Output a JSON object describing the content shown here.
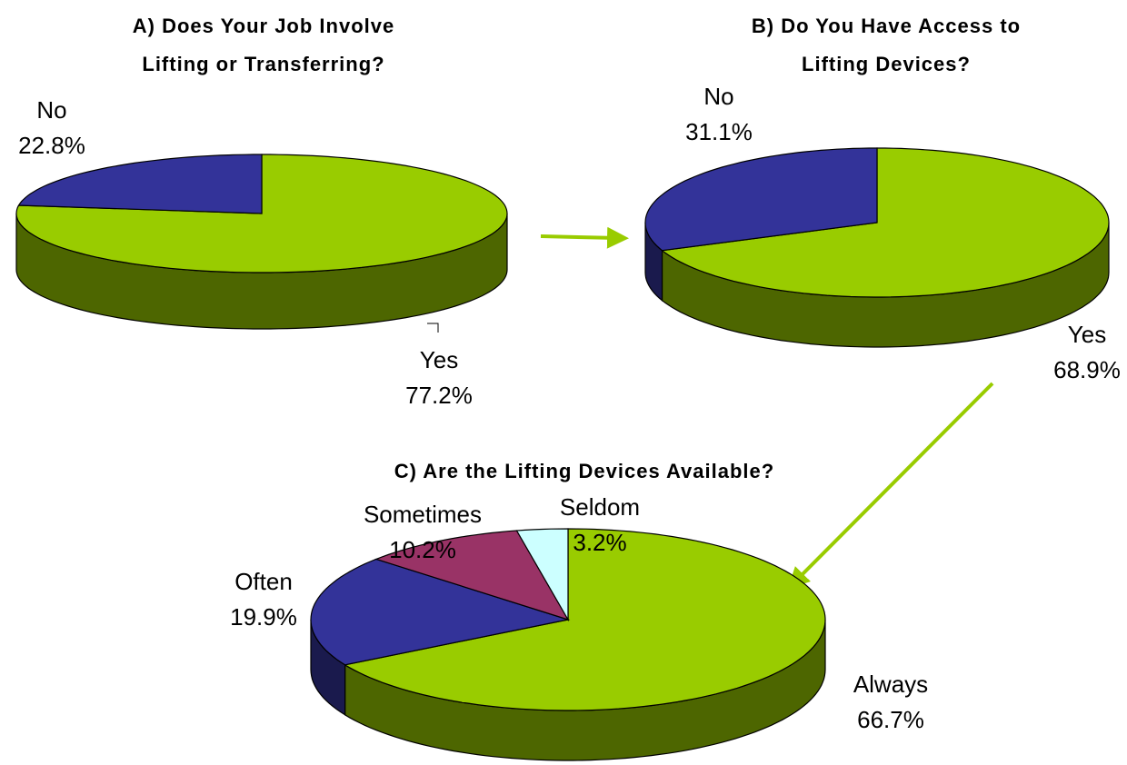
{
  "chart_data": [
    {
      "type": "pie",
      "title": [
        "A) Does Your Job Involve",
        "Lifting or Transferring?"
      ],
      "categories": [
        "Yes",
        "No"
      ],
      "values": [
        77.2,
        22.8
      ],
      "value_labels": [
        "77.2%",
        "22.8%"
      ],
      "colors": [
        "#99cc00",
        "#333399"
      ]
    },
    {
      "type": "pie",
      "title": [
        "B) Do You Have Access to",
        "Lifting Devices?"
      ],
      "categories": [
        "Yes",
        "No"
      ],
      "values": [
        68.9,
        31.1
      ],
      "value_labels": [
        "68.9%",
        "31.1%"
      ],
      "colors": [
        "#99cc00",
        "#333399"
      ]
    },
    {
      "type": "pie",
      "title": [
        "C) Are the Lifting Devices Available?"
      ],
      "categories": [
        "Always",
        "Often",
        "Sometimes",
        "Seldom"
      ],
      "values": [
        66.7,
        19.9,
        10.2,
        3.2
      ],
      "value_labels": [
        "66.7%",
        "19.9%",
        "10.2%",
        "3.2%"
      ],
      "colors": [
        "#99cc00",
        "#333399",
        "#993366",
        "#ccffff"
      ]
    }
  ]
}
